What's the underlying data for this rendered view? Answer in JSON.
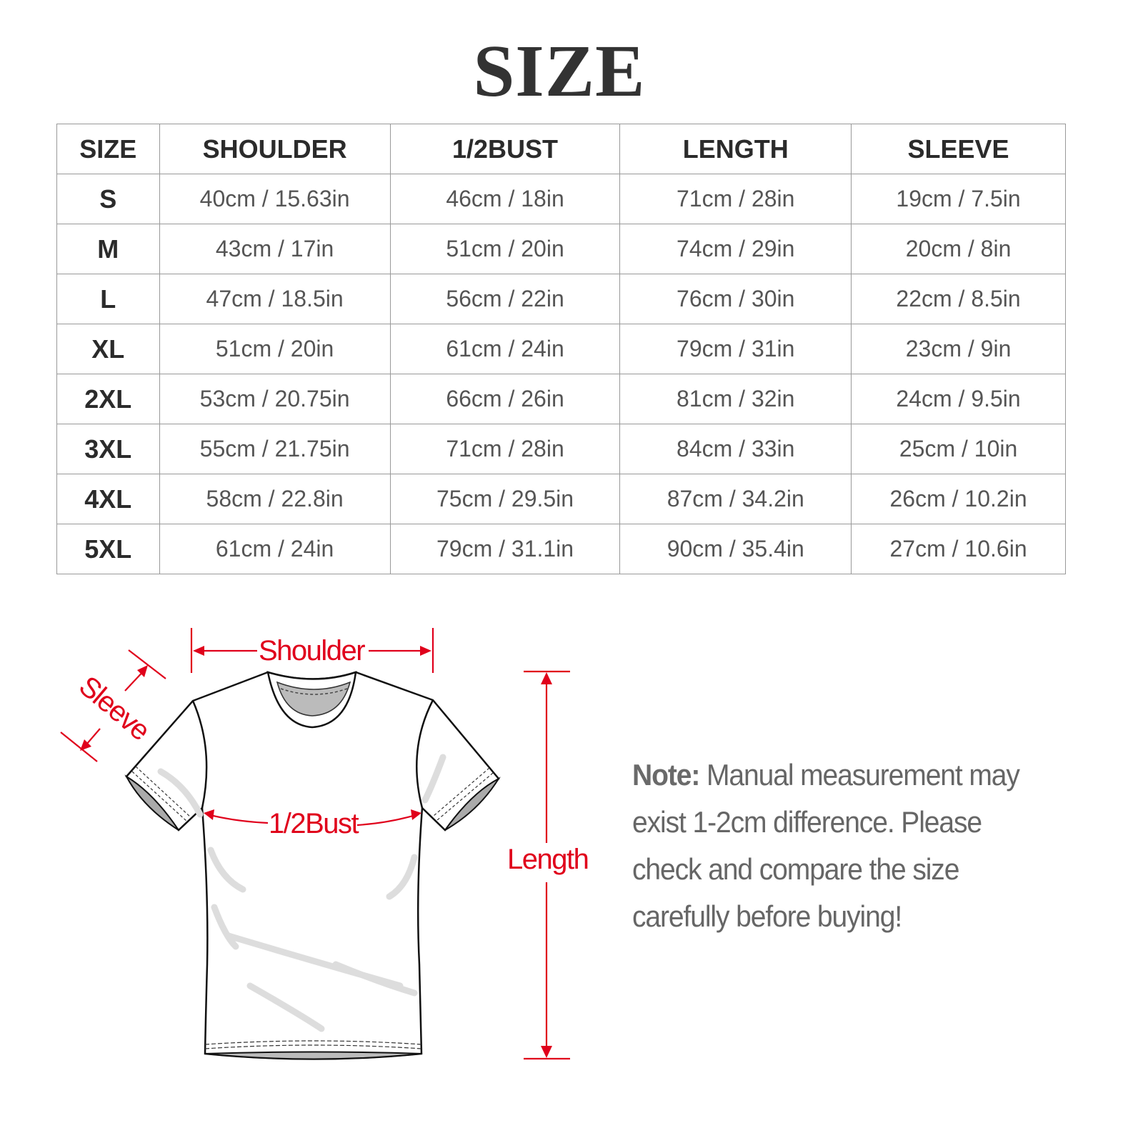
{
  "title": "SIZE",
  "table": {
    "headers": [
      "SIZE",
      "SHOULDER",
      "1/2BUST",
      "LENGTH",
      "SLEEVE"
    ],
    "rows": [
      [
        "S",
        "40cm / 15.63in",
        "46cm / 18in",
        "71cm / 28in",
        "19cm / 7.5in"
      ],
      [
        "M",
        "43cm / 17in",
        "51cm / 20in",
        "74cm / 29in",
        "20cm / 8in"
      ],
      [
        "L",
        "47cm / 18.5in",
        "56cm / 22in",
        "76cm / 30in",
        "22cm / 8.5in"
      ],
      [
        "XL",
        "51cm / 20in",
        "61cm / 24in",
        "79cm / 31in",
        "23cm / 9in"
      ],
      [
        "2XL",
        "53cm / 20.75in",
        "66cm / 26in",
        "81cm / 32in",
        "24cm / 9.5in"
      ],
      [
        "3XL",
        "55cm / 21.75in",
        "71cm / 28in",
        "84cm / 33in",
        "25cm / 10in"
      ],
      [
        "4XL",
        "58cm / 22.8in",
        "75cm / 29.5in",
        "87cm / 34.2in",
        "26cm / 10.2in"
      ],
      [
        "5XL",
        "61cm / 24in",
        "79cm / 31.1in",
        "90cm / 35.4in",
        "27cm / 10.6in"
      ]
    ]
  },
  "diagram": {
    "shoulder_label": "Shoulder",
    "sleeve_label": "Sleeve",
    "bust_label": "1/2Bust",
    "length_label": "Length",
    "accent_color": "#e0001b"
  },
  "note": {
    "label": "Note:",
    "text": " Manual measurement may exist 1-2cm difference. Please check and compare the size carefully before buying!"
  }
}
